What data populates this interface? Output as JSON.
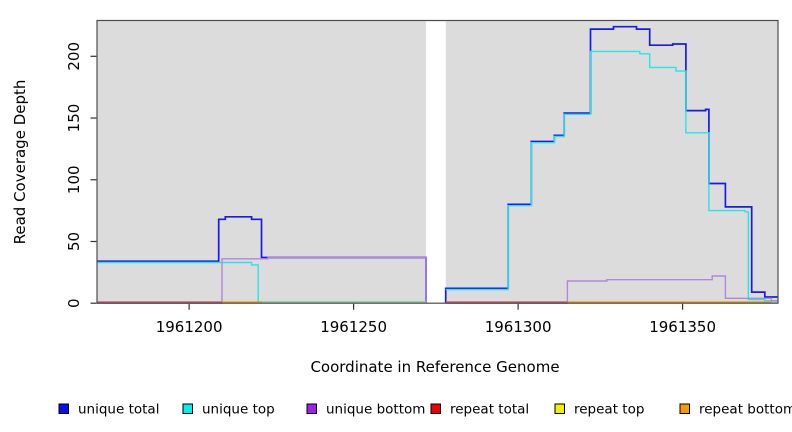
{
  "chart_data": {
    "type": "line",
    "title": "",
    "xlabel": "Coordinate in Reference Genome",
    "ylabel": "Read Coverage Depth",
    "xlim": [
      1961172,
      1961379
    ],
    "ylim": [
      0,
      229
    ],
    "x_ticks": [
      1961200,
      1961250,
      1961300,
      1961350
    ],
    "y_ticks": [
      0,
      50,
      100,
      150,
      200
    ],
    "gap_x": [
      1961272,
      1961278
    ],
    "plot_bg": "#dcdcdc",
    "frame_color": "#4d4d4d",
    "legend_position": "bottom",
    "series": [
      {
        "name": "unique total",
        "color": "#1a1ae8",
        "width": 1.7,
        "segments": [
          [
            [
              1961172,
              34
            ],
            [
              1961209,
              68
            ],
            [
              1961211,
              70
            ],
            [
              1961219,
              68
            ],
            [
              1961222,
              37
            ],
            [
              1961272,
              0
            ]
          ],
          [
            [
              1961278,
              0
            ],
            [
              1961278,
              12
            ],
            [
              1961297,
              80
            ],
            [
              1961304,
              131
            ],
            [
              1961311,
              136
            ],
            [
              1961314,
              154
            ],
            [
              1961322,
              222
            ],
            [
              1961329,
              224
            ],
            [
              1961336,
              222
            ],
            [
              1961340,
              209
            ],
            [
              1961347,
              210
            ],
            [
              1961351,
              156
            ],
            [
              1961357,
              157
            ],
            [
              1961358,
              97
            ],
            [
              1961363,
              78
            ],
            [
              1961371,
              9
            ],
            [
              1961375,
              5
            ],
            [
              1961379,
              5
            ]
          ]
        ]
      },
      {
        "name": "unique top",
        "color": "#2ae4e4",
        "width": 1.4,
        "segments": [
          [
            [
              1961172,
              33
            ],
            [
              1961219,
              31
            ],
            [
              1961221,
              1
            ],
            [
              1961272,
              1
            ]
          ],
          [
            [
              1961278,
              11
            ],
            [
              1961297,
              79
            ],
            [
              1961304,
              130
            ],
            [
              1961311,
              135
            ],
            [
              1961314,
              153
            ],
            [
              1961322,
              204
            ],
            [
              1961337,
              202
            ],
            [
              1961340,
              191
            ],
            [
              1961348,
              188
            ],
            [
              1961351,
              138
            ],
            [
              1961358,
              75
            ],
            [
              1961369,
              74
            ],
            [
              1961370,
              3
            ],
            [
              1961375,
              2
            ],
            [
              1961379,
              2
            ]
          ]
        ]
      },
      {
        "name": "unique bottom",
        "color": "#b285e0",
        "width": 1.4,
        "segments": [
          [
            [
              1961172,
              0
            ],
            [
              1961210,
              36
            ],
            [
              1961224,
              37
            ],
            [
              1961272,
              0
            ]
          ],
          [
            [
              1961278,
              0
            ],
            [
              1961315,
              18
            ],
            [
              1961327,
              19
            ],
            [
              1961359,
              22
            ],
            [
              1961363,
              4
            ],
            [
              1961377,
              2
            ],
            [
              1961379,
              2
            ]
          ]
        ]
      },
      {
        "name": "repeat total",
        "color": "#e60000",
        "width": 1.4,
        "segments": []
      },
      {
        "name": "repeat top",
        "color": "#f2f200",
        "width": 1.4,
        "segments": []
      },
      {
        "name": "repeat bottom",
        "color": "#f59300",
        "width": 1.4,
        "segments": []
      }
    ],
    "legend_swatch_colors": [
      "#0d0df0",
      "#00eeee",
      "#a020f0",
      "#ee0000",
      "#f0f000",
      "#ff9800"
    ],
    "baseline_segments": [
      {
        "x1": 1961172,
        "x2": 1961210,
        "color": "#d64562"
      },
      {
        "x1": 1961210,
        "x2": 1961222,
        "color": "#f59300"
      },
      {
        "x1": 1961222,
        "x2": 1961272,
        "color": "#98c998"
      },
      {
        "x1": 1961278,
        "x2": 1961315,
        "color": "#d64562"
      },
      {
        "x1": 1961315,
        "x2": 1961379,
        "color": "#f59300"
      },
      {
        "x1": 1961377,
        "x2": 1961379,
        "color": "#8fd8b0"
      }
    ]
  }
}
